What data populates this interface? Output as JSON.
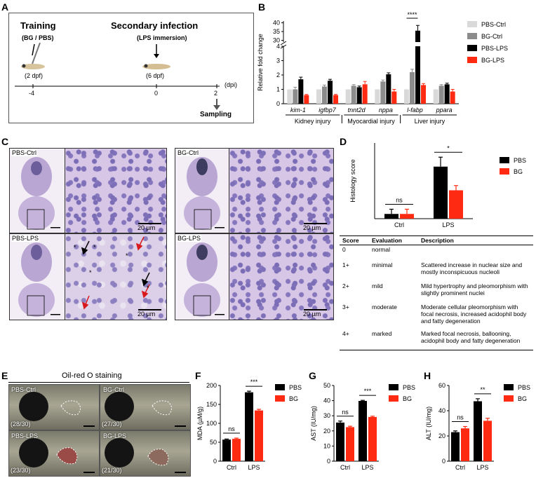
{
  "panels": {
    "A": {
      "letter": "A",
      "training_title": "Training",
      "training_sub": "(BG / PBS)",
      "training_age": "(2 dpf)",
      "infection_title": "Secondary infection",
      "infection_sub": "(LPS immersion)",
      "infection_age": "(6 dpf)",
      "ticks": [
        "-4",
        "0",
        "2"
      ],
      "axis_unit": "(dpi)",
      "sampling": "Sampling"
    },
    "B": {
      "letter": "B"
    },
    "C": {
      "letter": "C",
      "labels": [
        "PBS-Ctrl",
        "BG-Ctrl",
        "PBS-LPS",
        "BG-LPS"
      ],
      "scale": "20 µm"
    },
    "D": {
      "letter": "D",
      "table_headers": [
        "Score",
        "Evaluation",
        "Description"
      ],
      "table_rows": [
        {
          "score": "0",
          "evaluation": "normal",
          "description": ""
        },
        {
          "score": "1+",
          "evaluation": "minimal",
          "description": "Scattered increase in nuclear size and mostly inconspicuous nucleoli"
        },
        {
          "score": "2+",
          "evaluation": "mild",
          "description": "Mild hypertrophy and pleomorphism with slightly prominent nuclei"
        },
        {
          "score": "3+",
          "evaluation": "moderate",
          "description": "Moderate cellular pleomorphism with focal necrosis, increased acidophil body and fatty degeneration"
        },
        {
          "score": "4+",
          "evaluation": "marked",
          "description": "Marked focal necrosis, ballooning, acidophil body and fatty degeneration"
        }
      ]
    },
    "E": {
      "letter": "E",
      "title": "Oil-red O staining",
      "labels": [
        "PBS-Ctrl",
        "BG-Ctrl",
        "PBS-LPS",
        "BG-LPS"
      ],
      "counts": [
        "(28/30)",
        "(27/30)",
        "(23/30)",
        "(21/30)"
      ]
    },
    "F": {
      "letter": "F"
    },
    "G": {
      "letter": "G"
    },
    "H": {
      "letter": "H"
    }
  },
  "colors": {
    "pbs_ctrl": "#d9d9d9",
    "bg_ctrl": "#8c8c8c",
    "pbs_lps": "#000000",
    "bg_lps": "#ff2a12",
    "pbs": "#000000",
    "bg": "#ff2a12"
  },
  "chart_data": [
    {
      "id": "B",
      "type": "bar",
      "ylabel": "Relative fold change",
      "categories": [
        "kim-1",
        "igfbp7",
        "tnnt2d",
        "nppa",
        "l-fabp",
        "ppara"
      ],
      "groups": [
        {
          "label": "Kidney injury",
          "categories": [
            "kim-1",
            "igfbp7"
          ]
        },
        {
          "label": "Myocardial injury",
          "categories": [
            "tnnt2d",
            "nppa"
          ]
        },
        {
          "label": "Liver injury",
          "categories": [
            "l-fabp",
            "ppara"
          ]
        }
      ],
      "series": [
        {
          "name": "PBS-Ctrl",
          "values": [
            1.0,
            1.0,
            1.0,
            1.0,
            1.0,
            1.0
          ],
          "errors": [
            0,
            0,
            0,
            0,
            0,
            0
          ]
        },
        {
          "name": "BG-Ctrl",
          "values": [
            1.0,
            1.2,
            1.25,
            1.55,
            2.2,
            1.25
          ],
          "errors": [
            0.15,
            0.1,
            0.08,
            0.1,
            0.2,
            0.08
          ]
        },
        {
          "name": "PBS-LPS",
          "values": [
            1.7,
            1.6,
            1.15,
            2.05,
            35.5,
            1.35
          ],
          "errors": [
            0.15,
            0.1,
            0.08,
            0.1,
            3.0,
            0.08
          ]
        },
        {
          "name": "BG-LPS",
          "values": [
            0.6,
            0.6,
            1.35,
            0.85,
            1.3,
            0.85
          ],
          "errors": [
            0.05,
            0.05,
            0.2,
            0.15,
            0.1,
            0.15
          ]
        }
      ],
      "y_ticks_lower": [
        0,
        1,
        2,
        3,
        4
      ],
      "y_ticks_upper": [
        30,
        35,
        40
      ],
      "ylim_lower": [
        0,
        4
      ],
      "ylim_upper": [
        29,
        41
      ],
      "significance": [
        {
          "category": "l-fabp",
          "label": "****"
        }
      ]
    },
    {
      "id": "D",
      "type": "bar",
      "ylabel": "Histology score",
      "categories": [
        "Ctrl",
        "LPS"
      ],
      "series": [
        {
          "name": "PBS",
          "values": [
            0.25,
            2.75
          ],
          "errors": [
            0.25,
            0.5
          ]
        },
        {
          "name": "BG",
          "values": [
            0.25,
            1.5
          ],
          "errors": [
            0.25,
            0.25
          ]
        }
      ],
      "ylim": [
        0,
        4
      ],
      "significance": [
        {
          "category": "Ctrl",
          "label": "ns"
        },
        {
          "category": "LPS",
          "label": "*"
        }
      ]
    },
    {
      "id": "F",
      "type": "bar",
      "ylabel": "MDA (µM/g)",
      "categories": [
        "Ctrl",
        "LPS"
      ],
      "series": [
        {
          "name": "PBS",
          "values": [
            57,
            182
          ],
          "errors": [
            1.5,
            3
          ]
        },
        {
          "name": "BG",
          "values": [
            59,
            134
          ],
          "errors": [
            2,
            3
          ]
        }
      ],
      "yticks": [
        0,
        50,
        100,
        150,
        200
      ],
      "ylim": [
        0,
        200
      ],
      "significance": [
        {
          "category": "Ctrl",
          "label": "ns"
        },
        {
          "category": "LPS",
          "label": "***"
        }
      ]
    },
    {
      "id": "G",
      "type": "bar",
      "ylabel": "AST (IU/mg)",
      "categories": [
        "Ctrl",
        "LPS"
      ],
      "series": [
        {
          "name": "PBS",
          "values": [
            25.5,
            39.8
          ],
          "errors": [
            1,
            0.4
          ]
        },
        {
          "name": "BG",
          "values": [
            22.5,
            29.2
          ],
          "errors": [
            0.6,
            0.5
          ]
        }
      ],
      "yticks": [
        0,
        10,
        20,
        30,
        40,
        50
      ],
      "ylim": [
        0,
        50
      ],
      "significance": [
        {
          "category": "Ctrl",
          "label": "ns"
        },
        {
          "category": "LPS",
          "label": "***"
        }
      ]
    },
    {
      "id": "H",
      "type": "bar",
      "ylabel": "ALT (IU/mg)",
      "categories": [
        "Ctrl",
        "LPS"
      ],
      "series": [
        {
          "name": "PBS",
          "values": [
            23,
            47.5
          ],
          "errors": [
            1,
            2
          ]
        },
        {
          "name": "BG",
          "values": [
            26,
            32
          ],
          "errors": [
            1.5,
            2
          ]
        }
      ],
      "yticks": [
        0,
        20,
        40,
        60
      ],
      "ylim": [
        0,
        60
      ],
      "significance": [
        {
          "category": "Ctrl",
          "label": "ns"
        },
        {
          "category": "LPS",
          "label": "**"
        }
      ]
    }
  ]
}
